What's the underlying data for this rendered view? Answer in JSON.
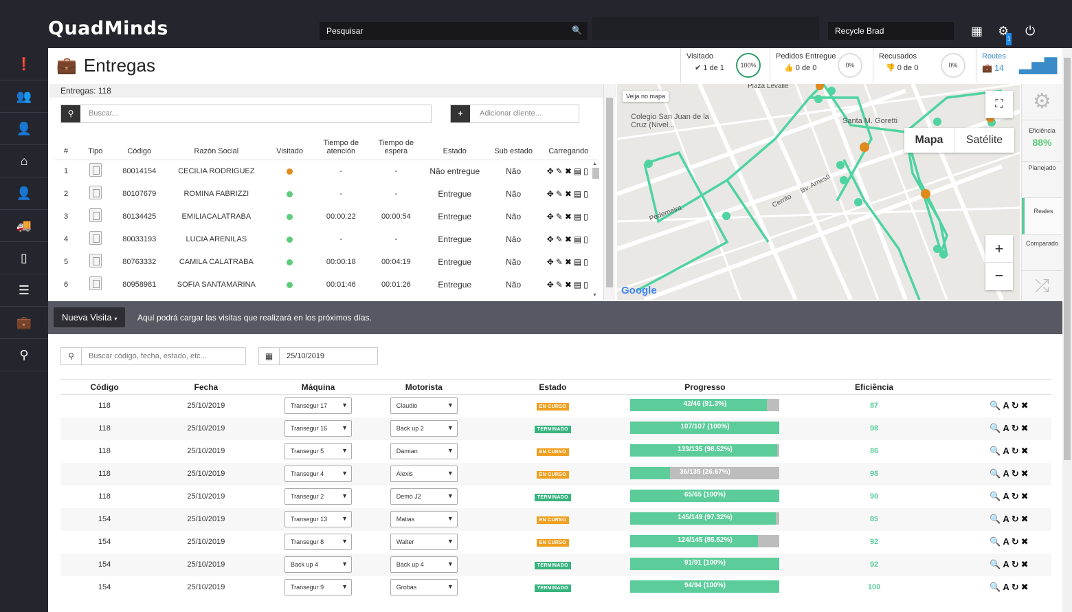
{
  "app": {
    "logo": "QuadMinds",
    "search_placeholder": "Pesquisar",
    "user": "Recycle Brad",
    "notification_count": "1"
  },
  "sidebar": {
    "items": [
      {
        "icon": "alert-icon",
        "glyph": "❗"
      },
      {
        "icon": "users-icon",
        "glyph": "👥"
      },
      {
        "icon": "user-icon",
        "glyph": "👤"
      },
      {
        "icon": "home-icon",
        "glyph": "⌂"
      },
      {
        "icon": "person-icon",
        "glyph": "👤",
        "active": true
      },
      {
        "icon": "truck-icon",
        "glyph": "🚚"
      },
      {
        "icon": "mobile-icon",
        "glyph": "▯"
      },
      {
        "icon": "list-icon",
        "glyph": "☰"
      },
      {
        "icon": "briefcase-icon",
        "glyph": "💼"
      },
      {
        "icon": "map-pin-icon",
        "glyph": "⚲"
      }
    ]
  },
  "page": {
    "title": "Entregas"
  },
  "kpis": {
    "visitado": {
      "label": "Visitado",
      "value": "✔ 1 de 1",
      "pct": "100%"
    },
    "pedidos": {
      "label": "Pedidos Entregue",
      "value": "👍 0 de 0",
      "pct": "0%"
    },
    "recusados": {
      "label": "Recusados",
      "value": "👎 0 de 0",
      "pct": "0%"
    },
    "routes": {
      "label": "Routes",
      "value": "14"
    }
  },
  "entregas": {
    "header": "Entregas: 118",
    "search_placeholder": "Buscar...",
    "add_placeholder": "Adicionar cliente...",
    "columns": [
      "#",
      "Tipo",
      "Código",
      "Razón Social",
      "Visitado",
      "Tiempo de atención",
      "Tiempo de espera",
      "Estado",
      "Sub estado",
      "Carregando"
    ],
    "rows": [
      {
        "n": "1",
        "codigo": "80014154",
        "razon": "CECILIA RODRIGUEZ",
        "dot": "#e08a1e",
        "atencion": "-",
        "espera": "-",
        "estado": "Não entregue",
        "sub": "Não"
      },
      {
        "n": "2",
        "codigo": "80107679",
        "razon": "ROMINA FABRIZZI",
        "dot": "#5ccc7a",
        "atencion": "-",
        "espera": "-",
        "estado": "Entregue",
        "sub": "Não"
      },
      {
        "n": "3",
        "codigo": "80134425",
        "razon": "EMILIACALATRABA",
        "dot": "#5ccc7a",
        "atencion": "00:00:22",
        "espera": "00:00:54",
        "estado": "Entregue",
        "sub": "Não"
      },
      {
        "n": "4",
        "codigo": "80033193",
        "razon": "LUCIA ARENILAS",
        "dot": "#5ccc7a",
        "atencion": "-",
        "espera": "-",
        "estado": "Entregue",
        "sub": "Não"
      },
      {
        "n": "5",
        "codigo": "80763332",
        "razon": "CAMILA CALATRABA",
        "dot": "#5ccc7a",
        "atencion": "00:00:18",
        "espera": "00:04:19",
        "estado": "Entregue",
        "sub": "Não"
      },
      {
        "n": "6",
        "codigo": "80958981",
        "razon": "SOFIA SANTAMARINA",
        "dot": "#5ccc7a",
        "atencion": "00:01:46",
        "espera": "00:01:26",
        "estado": "Entregue",
        "sub": "Não"
      }
    ],
    "row_actions": "✥✎✖▤▯"
  },
  "map": {
    "veija": "Veija no mapa",
    "mapa": "Mapa",
    "satelite": "Satélite",
    "google": "Google",
    "labels": [
      {
        "text": "Colegio San Juan de la Cruz (Nivel...",
        "cls": "l1"
      },
      {
        "text": "Santa M. Goretti",
        "cls": "l2"
      },
      {
        "text": "Pederneira",
        "cls": "l3"
      },
      {
        "text": "Cerrito",
        "cls": "l4"
      },
      {
        "text": "Bv. Arnesti",
        "cls": "l5"
      },
      {
        "text": "Plaza Levalle",
        "cls": "l6"
      }
    ]
  },
  "side_panel": {
    "eficiencia_label": "Eficiência",
    "eficiencia_value": "88%",
    "planejado": "Planejado",
    "reales": "Reales",
    "comparado": "Comparado"
  },
  "nueva_visita": {
    "button": "Nueva Visita",
    "text": "Aquí podrá cargar las visitas que realizará en los próximos días."
  },
  "filters": {
    "search_placeholder": "Buscar código, fecha, estado, etc...",
    "date": "25/10/2019"
  },
  "visitas": {
    "columns": [
      "Código",
      "Fecha",
      "Máquina",
      "Motorista",
      "Estado",
      "Progresso",
      "Eficiência",
      ""
    ],
    "rows": [
      {
        "codigo": "118",
        "fecha": "25/10/2019",
        "maquina": "Transegur 17",
        "motorista": "Claudio",
        "estado": "EN CURSO",
        "estado_type": "curso",
        "progress": 0.913,
        "progress_label": "42/46 (91.3%)",
        "eff": "87"
      },
      {
        "codigo": "118",
        "fecha": "25/10/2019",
        "maquina": "Transegur 16",
        "motorista": "Back up 2",
        "estado": "TERMINADO",
        "estado_type": "term",
        "progress": 1.0,
        "progress_label": "107/107 (100%)",
        "eff": "98"
      },
      {
        "codigo": "118",
        "fecha": "25/10/2019",
        "maquina": "Transegur 5",
        "motorista": "Damian",
        "estado": "EN CURSO",
        "estado_type": "curso",
        "progress": 0.9852,
        "progress_label": "133/135 (98.52%)",
        "eff": "86"
      },
      {
        "codigo": "118",
        "fecha": "25/10/2019",
        "maquina": "Transegur 4",
        "motorista": "Alexis",
        "estado": "EN CURSO",
        "estado_type": "curso",
        "progress": 0.2667,
        "progress_label": "36/135 (26.67%)",
        "eff": "98"
      },
      {
        "codigo": "118",
        "fecha": "25/10/2019",
        "maquina": "Transegur 2",
        "motorista": "Demo J2",
        "estado": "TERMINADO",
        "estado_type": "term",
        "progress": 1.0,
        "progress_label": "65/65 (100%)",
        "eff": "90"
      },
      {
        "codigo": "154",
        "fecha": "25/10/2019",
        "maquina": "Transegur 13",
        "motorista": "Matias",
        "estado": "EN CURSO",
        "estado_type": "curso",
        "progress": 0.9732,
        "progress_label": "145/149 (97.32%)",
        "eff": "85"
      },
      {
        "codigo": "154",
        "fecha": "25/10/2019",
        "maquina": "Transegur 8",
        "motorista": "Walter",
        "estado": "EN CURSO",
        "estado_type": "curso",
        "progress": 0.8552,
        "progress_label": "124/145 (85.52%)",
        "eff": "92"
      },
      {
        "codigo": "154",
        "fecha": "25/10/2019",
        "maquina": "Back up 4",
        "motorista": "Back up 4",
        "estado": "TERMINADO",
        "estado_type": "term",
        "progress": 1.0,
        "progress_label": "91/91 (100%)",
        "eff": "92"
      },
      {
        "codigo": "154",
        "fecha": "25/10/2019",
        "maquina": "Transegur 9",
        "motorista": "Grobas",
        "estado": "TERMINADO",
        "estado_type": "term",
        "progress": 1.0,
        "progress_label": "94/94 (100%)",
        "eff": "100"
      }
    ],
    "row_actions": "🔍A↻✖"
  }
}
